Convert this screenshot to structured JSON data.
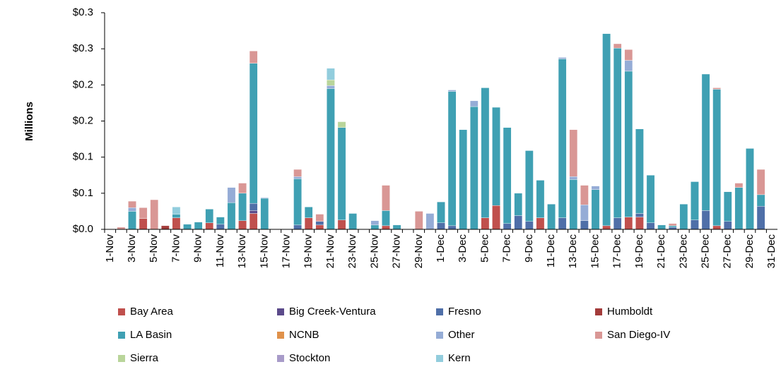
{
  "chart_data": {
    "type": "stacked_bar",
    "y_label": "Millions",
    "categories": [
      "1-Nov",
      null,
      "3-Nov",
      null,
      "5-Nov",
      null,
      "7-Nov",
      null,
      "9-Nov",
      null,
      "11-Nov",
      null,
      "13-Nov",
      null,
      "15-Nov",
      null,
      "17-Nov",
      null,
      "19-Nov",
      null,
      "21-Nov",
      null,
      "23-Nov",
      null,
      "25-Nov",
      null,
      "27-Nov",
      null,
      "29-Nov",
      null,
      "1-Dec",
      null,
      "3-Dec",
      null,
      "5-Dec",
      null,
      "7-Dec",
      null,
      "9-Dec",
      null,
      "11-Dec",
      null,
      "13-Dec",
      null,
      "15-Dec",
      null,
      "17-Dec",
      null,
      "19-Dec",
      null,
      "21-Dec",
      null,
      "23-Dec",
      null,
      "25-Dec",
      null,
      "27-Dec",
      null,
      "29-Dec",
      null,
      "31-Dec"
    ],
    "ylim": [
      0,
      0.3
    ],
    "yticks": [
      {
        "value": 0,
        "label": "$0.0"
      },
      {
        "value": 0.05,
        "label": "$0.1"
      },
      {
        "value": 0.1,
        "label": "$0.1"
      },
      {
        "value": 0.15,
        "label": "$0.2"
      },
      {
        "value": 0.2,
        "label": "$0.2"
      },
      {
        "value": 0.25,
        "label": "$0.3"
      },
      {
        "value": 0.3,
        "label": "$0.3"
      }
    ],
    "series": [
      {
        "name": "Bay Area",
        "color": "#c0504d",
        "values": [
          0,
          0,
          0,
          0.015,
          0,
          0,
          0.016,
          0,
          0,
          0.009,
          0,
          0,
          0.012,
          0.022,
          0,
          0,
          0,
          0,
          0.016,
          0.006,
          0,
          0.013,
          0,
          0,
          0,
          0.005,
          0,
          0,
          0,
          0,
          0,
          0,
          0,
          0,
          0.016,
          0.033,
          0,
          0,
          0,
          0.016,
          0,
          0,
          0,
          0,
          0,
          0.005,
          0,
          0.017,
          0.017,
          0,
          0,
          0,
          0,
          0,
          0,
          0.005,
          0,
          0,
          0,
          0,
          0
        ]
      },
      {
        "name": "Big Creek-Ventura",
        "color": "#5b4a8a",
        "values": [
          0,
          0,
          0,
          0,
          0,
          0,
          0,
          0,
          0,
          0,
          0,
          0,
          0,
          0.004,
          0,
          0,
          0,
          0,
          0,
          0,
          0,
          0,
          0,
          0,
          0,
          0,
          0,
          0,
          0,
          0,
          0,
          0,
          0,
          0,
          0,
          0,
          0,
          0,
          0,
          0,
          0,
          0,
          0,
          0,
          0,
          0,
          0,
          0,
          0,
          0,
          0,
          0,
          0,
          0,
          0,
          0,
          0,
          0,
          0,
          0,
          0
        ]
      },
      {
        "name": "Fresno",
        "color": "#4f6fa8",
        "values": [
          0,
          0,
          0,
          0,
          0,
          0,
          0,
          0,
          0,
          0,
          0.007,
          0,
          0,
          0.01,
          0,
          0,
          0,
          0.006,
          0,
          0.005,
          0,
          0,
          0,
          0,
          0,
          0,
          0,
          0,
          0,
          0,
          0.009,
          0.005,
          0,
          0,
          0,
          0,
          0.008,
          0.019,
          0.011,
          0,
          0,
          0.016,
          0,
          0.012,
          0,
          0,
          0.016,
          0,
          0.005,
          0.009,
          0,
          0.003,
          0,
          0.013,
          0.026,
          0,
          0.011,
          0,
          0,
          0.032,
          0
        ]
      },
      {
        "name": "Humboldt",
        "color": "#a33b3a",
        "values": [
          0,
          0,
          0,
          0,
          0,
          0.005,
          0,
          0,
          0,
          0,
          0,
          0,
          0,
          0,
          0,
          0,
          0,
          0,
          0,
          0,
          0,
          0,
          0,
          0,
          0,
          0,
          0,
          0,
          0,
          0,
          0,
          0,
          0,
          0,
          0,
          0,
          0,
          0,
          0,
          0,
          0,
          0,
          0,
          0,
          0,
          0,
          0,
          0,
          0,
          0,
          0,
          0,
          0,
          0,
          0,
          0,
          0,
          0,
          0,
          0,
          0
        ]
      },
      {
        "name": "LA Basin",
        "color": "#3fa0b3",
        "values": [
          0,
          0,
          0.025,
          0,
          0,
          0,
          0.005,
          0.007,
          0.01,
          0.019,
          0.01,
          0.037,
          0.038,
          0.194,
          0.043,
          0,
          0,
          0.064,
          0.015,
          0,
          0.195,
          0.128,
          0.022,
          0,
          0.006,
          0.021,
          0.006,
          0,
          0,
          0,
          0.029,
          0.186,
          0.138,
          0.17,
          0.18,
          0.136,
          0.133,
          0.031,
          0.098,
          0.052,
          0.035,
          0.22,
          0.069,
          0,
          0.055,
          0.266,
          0.235,
          0.202,
          0.117,
          0.066,
          0.006,
          0.002,
          0.035,
          0.053,
          0.189,
          0.189,
          0.041,
          0.058,
          0.112,
          0.016,
          0
        ]
      },
      {
        "name": "NCNB",
        "color": "#e0914a",
        "values": [
          0,
          0,
          0,
          0,
          0,
          0,
          0,
          0,
          0,
          0,
          0,
          0,
          0,
          0,
          0,
          0,
          0,
          0,
          0,
          0,
          0,
          0,
          0,
          0,
          0,
          0,
          0,
          0,
          0,
          0,
          0,
          0,
          0,
          0,
          0,
          0,
          0,
          0,
          0,
          0,
          0,
          0,
          0,
          0,
          0,
          0,
          0,
          0,
          0,
          0,
          0,
          0,
          0,
          0,
          0,
          0,
          0,
          0,
          0,
          0,
          0
        ]
      },
      {
        "name": "Other",
        "color": "#95acd6",
        "values": [
          0,
          0,
          0.005,
          0,
          0,
          0,
          0,
          0,
          0,
          0,
          0,
          0.021,
          0,
          0,
          0.001,
          0,
          0,
          0.003,
          0,
          0,
          0.004,
          0,
          0,
          0,
          0.006,
          0,
          0,
          0,
          0,
          0.022,
          0,
          0.002,
          0,
          0.008,
          0,
          0,
          0,
          0,
          0,
          0,
          0,
          0.002,
          0.004,
          0.022,
          0.005,
          0,
          0,
          0.015,
          0,
          0,
          0,
          0,
          0,
          0,
          0,
          0,
          0,
          0,
          0,
          0,
          0
        ]
      },
      {
        "name": "San Diego-IV",
        "color": "#d99795",
        "values": [
          0,
          0.003,
          0.009,
          0.015,
          0.041,
          0,
          0,
          0,
          0,
          0,
          0,
          0,
          0.014,
          0.017,
          0,
          0,
          0,
          0.01,
          0,
          0.01,
          0,
          0,
          0,
          0,
          0,
          0.035,
          0,
          0,
          0.025,
          0,
          0,
          0,
          0,
          0,
          0,
          0,
          0,
          0,
          0,
          0,
          0,
          0,
          0.065,
          0.027,
          0,
          0,
          0.006,
          0.015,
          0,
          0,
          0,
          0.003,
          0,
          0,
          0,
          0.002,
          0,
          0.006,
          0,
          0.035,
          0
        ]
      },
      {
        "name": "Sierra",
        "color": "#b9d59a",
        "values": [
          0,
          0,
          0,
          0,
          0,
          0,
          0,
          0,
          0,
          0,
          0,
          0,
          0,
          0,
          0,
          0,
          0,
          0,
          0,
          0,
          0.008,
          0.008,
          0,
          0,
          0,
          0,
          0,
          0,
          0,
          0,
          0,
          0,
          0,
          0,
          0,
          0,
          0,
          0,
          0,
          0,
          0,
          0,
          0,
          0,
          0,
          0,
          0,
          0,
          0,
          0,
          0,
          0,
          0,
          0,
          0,
          0,
          0,
          0,
          0,
          0,
          0
        ]
      },
      {
        "name": "Stockton",
        "color": "#a89bc9",
        "values": [
          0,
          0,
          0,
          0,
          0,
          0,
          0,
          0,
          0,
          0,
          0,
          0,
          0,
          0,
          0,
          0,
          0,
          0,
          0,
          0,
          0,
          0,
          0,
          0,
          0,
          0,
          0,
          0,
          0,
          0,
          0,
          0,
          0,
          0,
          0,
          0,
          0,
          0,
          0,
          0,
          0,
          0,
          0,
          0,
          0,
          0,
          0,
          0,
          0,
          0,
          0,
          0,
          0,
          0,
          0,
          0,
          0,
          0,
          0,
          0,
          0
        ]
      },
      {
        "name": "Kern",
        "color": "#92cddd",
        "values": [
          0,
          0,
          0,
          0,
          0,
          0,
          0.01,
          0,
          0,
          0,
          0,
          0,
          0,
          0,
          0,
          0,
          0,
          0,
          0,
          0,
          0.016,
          0,
          0,
          0,
          0,
          0,
          0,
          0,
          0,
          0,
          0,
          0,
          0,
          0,
          0,
          0,
          0,
          0,
          0,
          0,
          0,
          0,
          0,
          0,
          0,
          0,
          0,
          0,
          0,
          0,
          0,
          0,
          0,
          0,
          0,
          0,
          0,
          0,
          0,
          0,
          0
        ]
      }
    ]
  }
}
